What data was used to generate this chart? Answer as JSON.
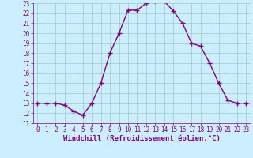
{
  "x": [
    0,
    1,
    2,
    3,
    4,
    5,
    6,
    7,
    8,
    9,
    10,
    11,
    12,
    13,
    14,
    15,
    16,
    17,
    18,
    19,
    20,
    21,
    22,
    23
  ],
  "y": [
    13.0,
    13.0,
    13.0,
    12.8,
    12.2,
    11.8,
    13.0,
    15.0,
    18.0,
    20.0,
    22.3,
    22.3,
    23.0,
    23.2,
    23.2,
    22.2,
    21.0,
    19.0,
    18.7,
    17.0,
    15.0,
    13.3,
    13.0,
    13.0
  ],
  "line_color": "#800080",
  "marker": "+",
  "marker_color": "#800080",
  "background_color": "#cceeff",
  "grid_color": "#99cccc",
  "xlabel": "Windchill (Refroidissement éolien,°C)",
  "xlabel_color": "#800080",
  "tick_color": "#800080",
  "ylim": [
    11,
    23
  ],
  "xlim": [
    -0.5,
    23.5
  ],
  "yticks": [
    11,
    12,
    13,
    14,
    15,
    16,
    17,
    18,
    19,
    20,
    21,
    22,
    23
  ],
  "xticks": [
    0,
    1,
    2,
    3,
    4,
    5,
    6,
    7,
    8,
    9,
    10,
    11,
    12,
    13,
    14,
    15,
    16,
    17,
    18,
    19,
    20,
    21,
    22,
    23
  ],
  "tick_fontsize": 5.5,
  "xlabel_fontsize": 6.5,
  "line_width": 1.0,
  "marker_size": 5
}
